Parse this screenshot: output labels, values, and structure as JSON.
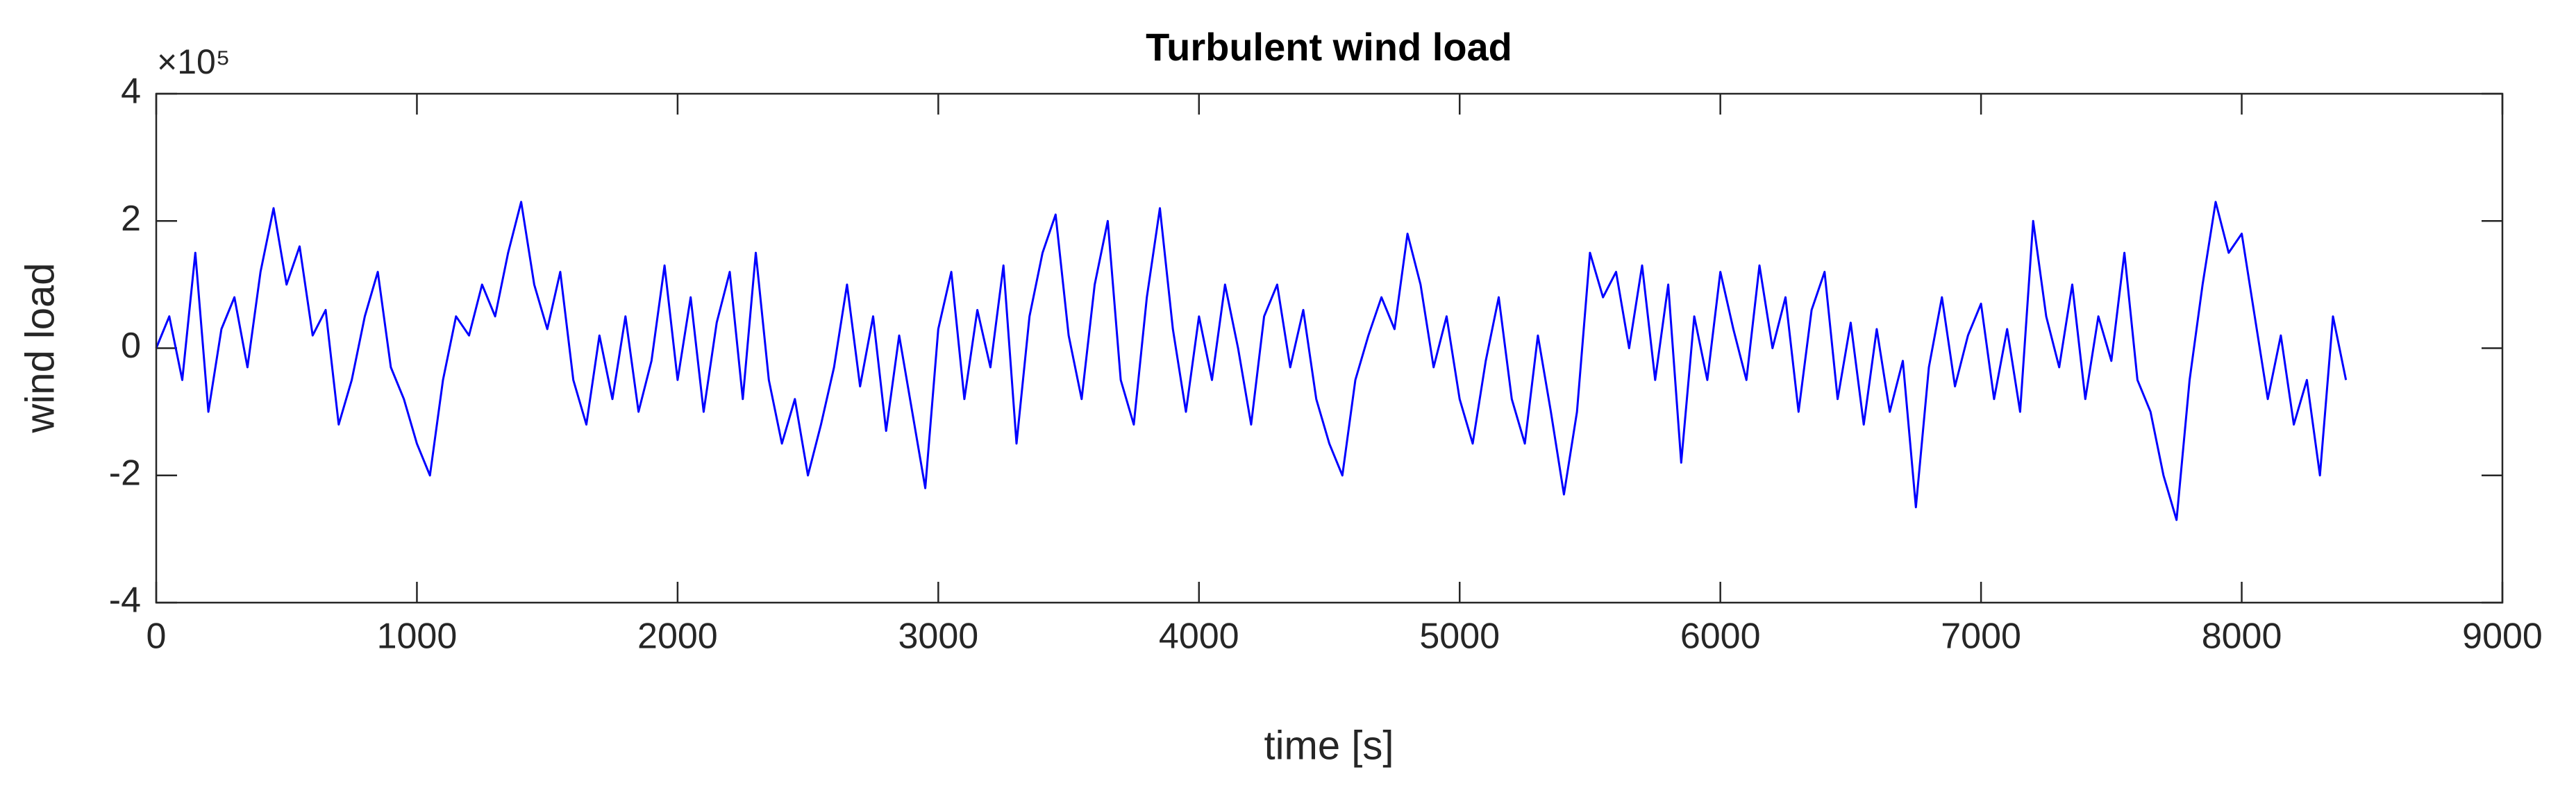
{
  "chart_data": {
    "type": "line",
    "title": "Turbulent wind load",
    "x_label": "time [s]",
    "y_label": "wind load",
    "y_exponent_label": "×10⁵",
    "x": [
      0,
      50,
      100,
      150,
      200,
      250,
      300,
      350,
      400,
      450,
      500,
      550,
      600,
      650,
      700,
      750,
      800,
      850,
      900,
      950,
      1000,
      1050,
      1100,
      1150,
      1200,
      1250,
      1300,
      1350,
      1400,
      1450,
      1500,
      1550,
      1600,
      1650,
      1700,
      1750,
      1800,
      1850,
      1900,
      1950,
      2000,
      2050,
      2100,
      2150,
      2200,
      2250,
      2300,
      2350,
      2400,
      2450,
      2500,
      2550,
      2600,
      2650,
      2700,
      2750,
      2800,
      2850,
      2900,
      2950,
      3000,
      3050,
      3100,
      3150,
      3200,
      3250,
      3300,
      3350,
      3400,
      3450,
      3500,
      3550,
      3600,
      3650,
      3700,
      3750,
      3800,
      3850,
      3900,
      3950,
      4000,
      4050,
      4100,
      4150,
      4200,
      4250,
      4300,
      4350,
      4400,
      4450,
      4500,
      4550,
      4600,
      4650,
      4700,
      4750,
      4800,
      4850,
      4900,
      4950,
      5000,
      5050,
      5100,
      5150,
      5200,
      5250,
      5300,
      5350,
      5400,
      5450,
      5500,
      5550,
      5600,
      5650,
      5700,
      5750,
      5800,
      5850,
      5900,
      5950,
      6000,
      6050,
      6100,
      6150,
      6200,
      6250,
      6300,
      6350,
      6400,
      6450,
      6500,
      6550,
      6600,
      6650,
      6700,
      6750,
      6800,
      6850,
      6900,
      6950,
      7000,
      7050,
      7100,
      7150,
      7200,
      7250,
      7300,
      7350,
      7400,
      7450,
      7500,
      7550,
      7600,
      7650,
      7700,
      7750,
      7800,
      7850,
      7900,
      7950,
      8000,
      8050,
      8100,
      8150,
      8200,
      8250,
      8300,
      8350,
      8400
    ],
    "series": [
      {
        "name": "wind load",
        "color": "#0000ff",
        "values": [
          0,
          0.5,
          -0.5,
          1.5,
          -1.0,
          0.3,
          0.8,
          -0.3,
          1.2,
          2.2,
          1.0,
          1.6,
          0.2,
          0.6,
          -1.2,
          -0.5,
          0.5,
          1.2,
          -0.3,
          -0.8,
          -1.5,
          -2.0,
          -0.5,
          0.5,
          0.2,
          1.0,
          0.5,
          1.5,
          2.3,
          1.0,
          0.3,
          1.2,
          -0.5,
          -1.2,
          0.2,
          -0.8,
          0.5,
          -1.0,
          -0.2,
          1.3,
          -0.5,
          0.8,
          -1.0,
          0.4,
          1.2,
          -0.8,
          1.5,
          -0.5,
          -1.5,
          -0.8,
          -2.0,
          -1.2,
          -0.3,
          1.0,
          -0.6,
          0.5,
          -1.3,
          0.2,
          -1.0,
          -2.2,
          0.3,
          1.2,
          -0.8,
          0.6,
          -0.3,
          1.3,
          -1.5,
          0.5,
          1.5,
          2.1,
          0.2,
          -0.8,
          1.0,
          2.0,
          -0.5,
          -1.2,
          0.8,
          2.2,
          0.3,
          -1.0,
          0.5,
          -0.5,
          1.0,
          0.0,
          -1.2,
          0.5,
          1.0,
          -0.3,
          0.6,
          -0.8,
          -1.5,
          -2.0,
          -0.5,
          0.2,
          0.8,
          0.3,
          1.8,
          1.0,
          -0.3,
          0.5,
          -0.8,
          -1.5,
          -0.2,
          0.8,
          -0.8,
          -1.5,
          0.2,
          -1.0,
          -2.3,
          -1.0,
          1.5,
          0.8,
          1.2,
          0.0,
          1.3,
          -0.5,
          1.0,
          -1.8,
          0.5,
          -0.5,
          1.2,
          0.3,
          -0.5,
          1.3,
          0.0,
          0.8,
          -1.0,
          0.6,
          1.2,
          -0.8,
          0.4,
          -1.2,
          0.3,
          -1.0,
          -0.2,
          -2.5,
          -0.3,
          0.8,
          -0.6,
          0.2,
          0.7,
          -0.8,
          0.3,
          -1.0,
          2.0,
          0.5,
          -0.3,
          1.0,
          -0.8,
          0.5,
          -0.2,
          1.5,
          -0.5,
          -1.0,
          -2.0,
          -2.7,
          -0.5,
          1.0,
          2.3,
          1.5,
          1.8,
          0.5,
          -0.8,
          0.2,
          -1.2,
          -0.5,
          -2.0,
          0.5,
          -0.5
        ]
      }
    ],
    "xlim": [
      0,
      9000
    ],
    "xticks": [
      0,
      1000,
      2000,
      3000,
      4000,
      5000,
      6000,
      7000,
      8000,
      9000
    ],
    "ylim": [
      -4,
      4
    ],
    "yticks": [
      -4,
      -2,
      0,
      2,
      4
    ],
    "grid": false
  }
}
